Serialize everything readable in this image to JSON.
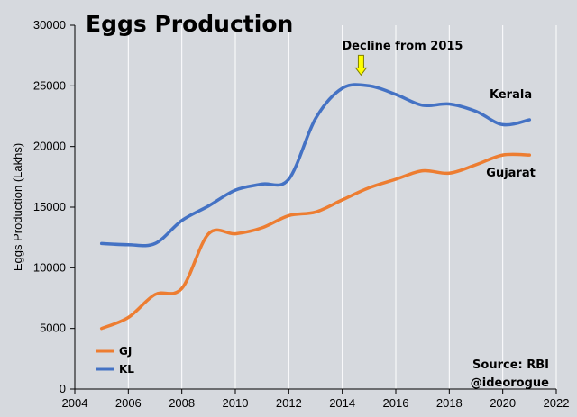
{
  "chart_data": {
    "type": "line",
    "title": "Eggs Production",
    "ylabel": "Eggs Production (Lakhs)",
    "xlabel": "",
    "xlim": [
      2004,
      2022
    ],
    "ylim": [
      0,
      30000
    ],
    "xticks": [
      "2004",
      "2006",
      "2008",
      "2010",
      "2012",
      "2014",
      "2016",
      "2018",
      "2020",
      "2022"
    ],
    "yticks": [
      "0",
      "5000",
      "10000",
      "15000",
      "20000",
      "25000",
      "30000"
    ],
    "grid": "vertical",
    "legend_position": "bottom-left",
    "x": [
      2005,
      2006,
      2007,
      2008,
      2009,
      2010,
      2011,
      2012,
      2013,
      2014,
      2015,
      2016,
      2017,
      2018,
      2019,
      2020,
      2021
    ],
    "series": [
      {
        "name": "GJ",
        "label": "Gujarat",
        "color": "#ed7d31",
        "values": [
          5000,
          5900,
          7800,
          8300,
          12800,
          12800,
          13300,
          14300,
          14600,
          15600,
          16600,
          17300,
          18000,
          17800,
          18500,
          19300,
          19300
        ]
      },
      {
        "name": "KL",
        "label": "Kerala",
        "color": "#4472c4",
        "values": [
          12000,
          11900,
          12000,
          13900,
          15100,
          16400,
          16900,
          17300,
          22300,
          24800,
          25000,
          24300,
          23400,
          23500,
          22900,
          21800,
          22200
        ]
      }
    ],
    "annotation": {
      "text": "Decline from 2015",
      "x": 2014.7,
      "y": 25000,
      "arrow_color": "#ffff00"
    },
    "source": "Source: RBI",
    "handle": "@ideorogue"
  }
}
